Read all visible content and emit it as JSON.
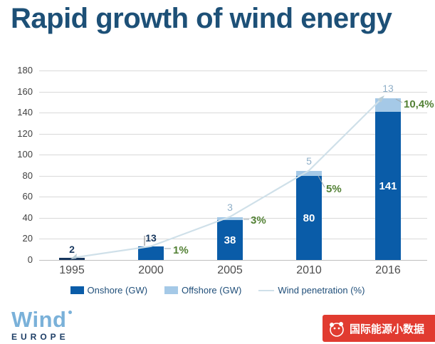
{
  "title": "Rapid growth of wind energy",
  "chart_data": {
    "type": "bar",
    "categories": [
      "1995",
      "2000",
      "2005",
      "2010",
      "2016"
    ],
    "series": [
      {
        "name": "Onshore (GW)",
        "values": [
          2,
          13,
          38,
          80,
          141
        ]
      },
      {
        "name": "Offshore (GW)",
        "values": [
          0,
          0,
          3,
          5,
          13
        ]
      },
      {
        "name": "Wind penetration (%)",
        "values": [
          0,
          1,
          3,
          5,
          10.4
        ]
      }
    ],
    "ylim": [
      0,
      180
    ],
    "ytick_interval": 20,
    "grid": "horizontal",
    "legend_position": "bottom",
    "bar_value_labels_inside": [
      "",
      "",
      "38",
      "80",
      "141"
    ],
    "bar_value_labels_above": [
      "2",
      "13",
      "",
      "",
      ""
    ],
    "offshore_labels_above": [
      "",
      "",
      "3",
      "5",
      "13"
    ],
    "penetration_labels": [
      "",
      "1%",
      "3%",
      "5%",
      "10,4%"
    ]
  },
  "legend": {
    "items": [
      {
        "label": "Onshore (GW)"
      },
      {
        "label": "Offshore (GW)"
      },
      {
        "label": "Wind penetration (%)"
      }
    ]
  },
  "footer": {
    "logo_main": "Wind",
    "logo_sub": "EUROPE",
    "badge_text": "国际能源小数据"
  },
  "colors": {
    "title": "#1d5077",
    "onshore": "#0a5ca8",
    "onshore_dark": "#17375e",
    "offshore": "#a5c9e7",
    "offshore_label": "#8fafc8",
    "line": "#cfe0e9",
    "line_arrow": "#b9cdd6",
    "green": "#538135",
    "grid": "#d9d9d9",
    "axis": "#bfbfbf",
    "ytick": "#404040",
    "xtick": "#4d4d4d",
    "legend_text": "#1f4e79",
    "callout": "#9aa5ad",
    "logo_blue": "#7ab1d9",
    "logo_navy": "#1e3e66",
    "badge_red": "#e13b30"
  }
}
